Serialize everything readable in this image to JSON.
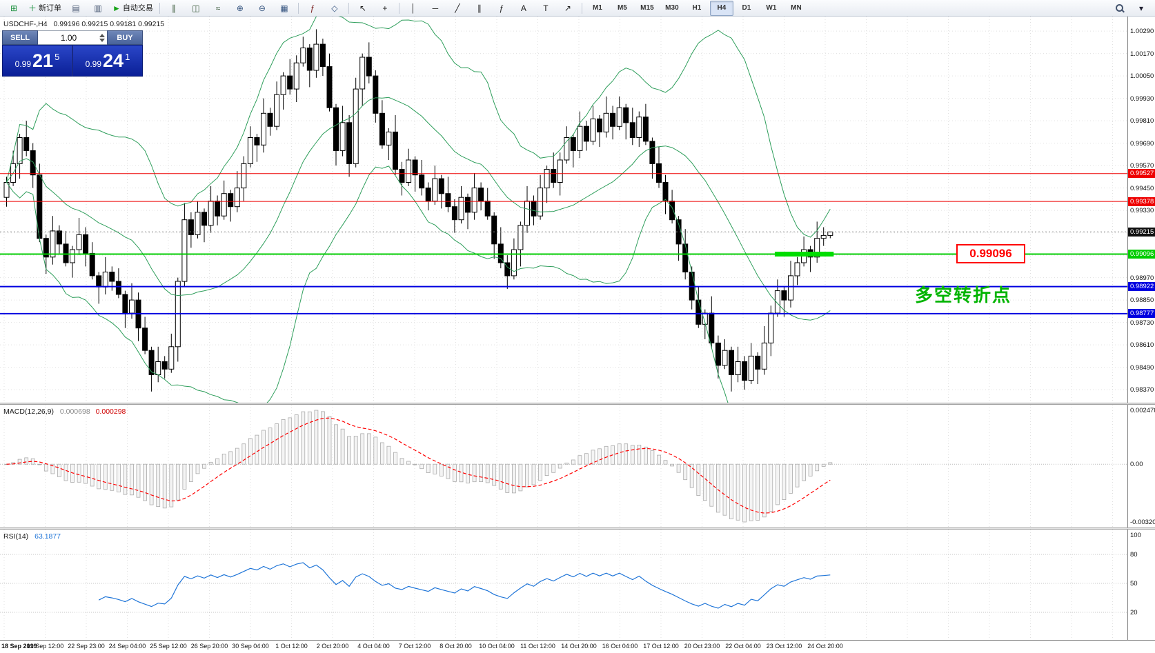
{
  "toolbar": {
    "buttons": [
      {
        "name": "app-icon",
        "glyph": "⊞",
        "color": "#1a8f3c"
      },
      {
        "name": "new-order-button",
        "glyph": "＋",
        "color": "#1a8f3c",
        "label": "新订单"
      },
      {
        "name": "charts-window-icon",
        "glyph": "▤",
        "color": "#44546f"
      },
      {
        "name": "market-watch-icon",
        "glyph": "▥",
        "color": "#44546f"
      },
      {
        "name": "autotrade-button",
        "glyph": "►",
        "color": "#15a315",
        "label": "自动交易"
      },
      {
        "type": "sep"
      },
      {
        "name": "bar-chart-icon",
        "glyph": "∥",
        "color": "#3a5a3a"
      },
      {
        "name": "candle-chart-icon",
        "glyph": "◫",
        "color": "#3a5a3a"
      },
      {
        "name": "line-chart-icon",
        "glyph": "≈",
        "color": "#3a5a3a"
      },
      {
        "name": "zoom-in-icon",
        "glyph": "⊕",
        "color": "#33527e"
      },
      {
        "name": "zoom-out-icon",
        "glyph": "⊖",
        "color": "#33527e"
      },
      {
        "name": "tile-windows-icon",
        "glyph": "▦",
        "color": "#33527e"
      },
      {
        "type": "sep"
      },
      {
        "name": "indicators-icon",
        "glyph": "ƒ",
        "color": "#7a2020"
      },
      {
        "name": "templates-icon",
        "glyph": "◇",
        "color": "#33527e"
      },
      {
        "type": "sep"
      },
      {
        "name": "cursor-icon",
        "glyph": "↖",
        "color": "#222222"
      },
      {
        "name": "crosshair-icon",
        "glyph": "+",
        "color": "#222222"
      },
      {
        "type": "sep"
      },
      {
        "name": "vertical-line-icon",
        "glyph": "│",
        "color": "#222222"
      },
      {
        "name": "horizontal-line-icon",
        "glyph": "─",
        "color": "#222222"
      },
      {
        "name": "trendline-icon",
        "glyph": "╱",
        "color": "#222222"
      },
      {
        "name": "channel-icon",
        "glyph": "∥",
        "color": "#222222"
      },
      {
        "name": "fibonacci-icon",
        "glyph": "ƒ",
        "color": "#222222"
      },
      {
        "name": "text-label-icon",
        "glyph": "A",
        "color": "#222222"
      },
      {
        "name": "arrows-tool-icon",
        "glyph": "T",
        "color": "#222222"
      },
      {
        "name": "shapes-icon",
        "glyph": "↗",
        "color": "#222222"
      },
      {
        "type": "sep"
      }
    ],
    "timeframes": [
      "M1",
      "M5",
      "M15",
      "M30",
      "H1",
      "H4",
      "D1",
      "W1",
      "MN"
    ],
    "active_timeframe": "H4"
  },
  "chart": {
    "symbol_tf": "USDCHF-,H4",
    "ohlc_text": "0.99196 0.99215 0.99181 0.99215",
    "level_box_text": "0.99096",
    "annotation_text": "多空转折点"
  },
  "trade_panel": {
    "sell_label": "SELL",
    "buy_label": "BUY",
    "volume": "1.00",
    "bid_prefix": "0.99",
    "bid_big": "21",
    "bid_sup": "5",
    "ask_prefix": "0.99",
    "ask_big": "24",
    "ask_sup": "1"
  },
  "macd_panel": {
    "name": "MACD(12,26,9)",
    "main_value": "0.000698",
    "signal_value": "0.000298"
  },
  "rsi_panel": {
    "name": "RSI(14)",
    "value": "63.1877"
  },
  "chart_data": {
    "type": "candlestick",
    "symbol": "USDCHF-",
    "timeframe": "H4",
    "price_axis_labels": [
      "1.00290",
      "1.00170",
      "1.00050",
      "0.99930",
      "0.99810",
      "0.99690",
      "0.99570",
      "0.99450",
      "0.99330",
      "0.98970",
      "0.98850",
      "0.98730",
      "0.98610",
      "0.98490",
      "0.98370"
    ],
    "time_labels": [
      "18 Sep 2019",
      "19 Sep 12:00",
      "22 Sep 23:00",
      "24 Sep 04:00",
      "25 Sep 12:00",
      "26 Sep 20:00",
      "30 Sep 04:00",
      "1 Oct 12:00",
      "2 Oct 20:00",
      "4 Oct 04:00",
      "7 Oct 12:00",
      "8 Oct 20:00",
      "10 Oct 04:00",
      "11 Oct 12:00",
      "14 Oct 20:00",
      "16 Oct 04:00",
      "17 Oct 12:00",
      "20 Oct 23:00",
      "22 Oct 04:00",
      "23 Oct 12:00",
      "24 Oct 20:00"
    ],
    "candles": [
      [
        0.994,
        0.9951,
        0.9935,
        0.9948
      ],
      [
        0.9948,
        0.9965,
        0.9946,
        0.9958
      ],
      [
        0.9958,
        0.9974,
        0.995,
        0.9972
      ],
      [
        0.9972,
        0.9981,
        0.9962,
        0.9965
      ],
      [
        0.9965,
        0.9969,
        0.9945,
        0.9952
      ],
      [
        0.9952,
        0.9958,
        0.9916,
        0.9918
      ],
      [
        0.9918,
        0.992,
        0.9899,
        0.9908
      ],
      [
        0.9908,
        0.993,
        0.9904,
        0.9922
      ],
      [
        0.9922,
        0.9925,
        0.991,
        0.9915
      ],
      [
        0.9915,
        0.9922,
        0.9903,
        0.9905
      ],
      [
        0.9905,
        0.9914,
        0.9897,
        0.9912
      ],
      [
        0.9912,
        0.9929,
        0.9909,
        0.992
      ],
      [
        0.992,
        0.9924,
        0.9903,
        0.991
      ],
      [
        0.991,
        0.9916,
        0.9896,
        0.9898
      ],
      [
        0.9898,
        0.99,
        0.9883,
        0.9892
      ],
      [
        0.9892,
        0.9908,
        0.9888,
        0.99
      ],
      [
        0.99,
        0.9903,
        0.989,
        0.9895
      ],
      [
        0.9895,
        0.9902,
        0.9886,
        0.9888
      ],
      [
        0.9888,
        0.989,
        0.987,
        0.9878
      ],
      [
        0.9878,
        0.9894,
        0.9875,
        0.9885
      ],
      [
        0.9885,
        0.9889,
        0.9863,
        0.987
      ],
      [
        0.987,
        0.9876,
        0.9856,
        0.9858
      ],
      [
        0.9858,
        0.986,
        0.9836,
        0.9845
      ],
      [
        0.9845,
        0.986,
        0.9841,
        0.9852
      ],
      [
        0.9852,
        0.9855,
        0.9843,
        0.9848
      ],
      [
        0.9848,
        0.9867,
        0.9846,
        0.986
      ],
      [
        0.986,
        0.9897,
        0.9852,
        0.9895
      ],
      [
        0.9895,
        0.9937,
        0.9892,
        0.9928
      ],
      [
        0.9928,
        0.9932,
        0.9913,
        0.992
      ],
      [
        0.992,
        0.9938,
        0.9918,
        0.9932
      ],
      [
        0.9932,
        0.9934,
        0.9916,
        0.9925
      ],
      [
        0.9925,
        0.9946,
        0.9921,
        0.9938
      ],
      [
        0.9938,
        0.9941,
        0.9925,
        0.993
      ],
      [
        0.993,
        0.9949,
        0.9928,
        0.9942
      ],
      [
        0.9942,
        0.9944,
        0.9927,
        0.9935
      ],
      [
        0.9935,
        0.9954,
        0.9932,
        0.9945
      ],
      [
        0.9945,
        0.9962,
        0.9938,
        0.9958
      ],
      [
        0.9958,
        0.9978,
        0.9956,
        0.9972
      ],
      [
        0.9972,
        0.9974,
        0.9959,
        0.9968
      ],
      [
        0.9968,
        0.9993,
        0.9964,
        0.9985
      ],
      [
        0.9985,
        0.9988,
        0.9973,
        0.9978
      ],
      [
        0.9978,
        1.0002,
        0.9976,
        0.9995
      ],
      [
        0.9995,
        1.0007,
        0.9987,
        1.0005
      ],
      [
        1.0005,
        1.0014,
        0.9995,
        0.9998
      ],
      [
        0.9998,
        1.0016,
        0.9991,
        1.0012
      ],
      [
        1.0012,
        1.0026,
        1.001,
        1.002
      ],
      [
        1.002,
        1.0022,
        0.9999,
        1.0008
      ],
      [
        1.0008,
        1.003,
        1.0004,
        1.0022
      ],
      [
        1.0022,
        1.0025,
        1.0005,
        1.001
      ],
      [
        1.001,
        1.0017,
        0.9986,
        0.9988
      ],
      [
        0.9988,
        0.999,
        0.9957,
        0.9965
      ],
      [
        0.9965,
        0.9989,
        0.9962,
        0.998
      ],
      [
        0.998,
        0.9984,
        0.9951,
        0.9958
      ],
      [
        0.9958,
        1.0004,
        0.9956,
        0.9998
      ],
      [
        0.9998,
        1.0017,
        0.9989,
        1.0015
      ],
      [
        1.0015,
        1.0023,
        1.0001,
        1.0005
      ],
      [
        1.0005,
        1.0008,
        0.998,
        0.9985
      ],
      [
        0.9985,
        0.9992,
        0.9966,
        0.9968
      ],
      [
        0.9968,
        0.9977,
        0.996,
        0.9975
      ],
      [
        0.9975,
        0.9984,
        0.9952,
        0.9955
      ],
      [
        0.9955,
        0.9959,
        0.9941,
        0.9948
      ],
      [
        0.9948,
        0.9966,
        0.9946,
        0.996
      ],
      [
        0.996,
        0.9962,
        0.9943,
        0.9952
      ],
      [
        0.9952,
        0.996,
        0.9941,
        0.9945
      ],
      [
        0.9945,
        0.9948,
        0.9933,
        0.9938
      ],
      [
        0.9938,
        0.9957,
        0.9936,
        0.995
      ],
      [
        0.995,
        0.9952,
        0.9934,
        0.9942
      ],
      [
        0.9942,
        0.9951,
        0.9932,
        0.9935
      ],
      [
        0.9935,
        0.9939,
        0.9921,
        0.9928
      ],
      [
        0.9928,
        0.9946,
        0.9926,
        0.994
      ],
      [
        0.994,
        0.9942,
        0.9923,
        0.9932
      ],
      [
        0.9932,
        0.9953,
        0.9928,
        0.9945
      ],
      [
        0.9945,
        0.9948,
        0.9933,
        0.9938
      ],
      [
        0.9938,
        0.9945,
        0.9928,
        0.993
      ],
      [
        0.993,
        0.9932,
        0.9907,
        0.9915
      ],
      [
        0.9915,
        0.9924,
        0.9902,
        0.9905
      ],
      [
        0.9905,
        0.9909,
        0.9891,
        0.9898
      ],
      [
        0.9898,
        0.9918,
        0.9896,
        0.9912
      ],
      [
        0.9912,
        0.9927,
        0.9903,
        0.9925
      ],
      [
        0.9925,
        0.9946,
        0.9921,
        0.9938
      ],
      [
        0.9938,
        0.9941,
        0.9925,
        0.993
      ],
      [
        0.993,
        0.9952,
        0.9928,
        0.9945
      ],
      [
        0.9945,
        0.9957,
        0.9937,
        0.9955
      ],
      [
        0.9955,
        0.9964,
        0.9945,
        0.9948
      ],
      [
        0.9948,
        0.9964,
        0.9941,
        0.996
      ],
      [
        0.996,
        0.9978,
        0.9958,
        0.9972
      ],
      [
        0.9972,
        0.9974,
        0.9956,
        0.9965
      ],
      [
        0.9965,
        0.9986,
        0.9961,
        0.9978
      ],
      [
        0.9978,
        0.9981,
        0.9965,
        0.997
      ],
      [
        0.997,
        0.9989,
        0.9968,
        0.9982
      ],
      [
        0.9982,
        0.9984,
        0.9967,
        0.9975
      ],
      [
        0.9975,
        0.9994,
        0.9972,
        0.9985
      ],
      [
        0.9985,
        0.9989,
        0.9971,
        0.9978
      ],
      [
        0.9978,
        0.9994,
        0.9976,
        0.9988
      ],
      [
        0.9988,
        0.999,
        0.9971,
        0.998
      ],
      [
        0.998,
        0.9988,
        0.9968,
        0.9972
      ],
      [
        0.9972,
        0.9986,
        0.9967,
        0.9983
      ],
      [
        0.9983,
        0.999,
        0.9968,
        0.997
      ],
      [
        0.997,
        0.9972,
        0.995,
        0.9958
      ],
      [
        0.9958,
        0.9967,
        0.9945,
        0.9948
      ],
      [
        0.9948,
        0.9952,
        0.9931,
        0.9938
      ],
      [
        0.9938,
        0.9944,
        0.9926,
        0.9928
      ],
      [
        0.9928,
        0.993,
        0.9906,
        0.9915
      ],
      [
        0.9915,
        0.9923,
        0.9896,
        0.99
      ],
      [
        0.99,
        0.9903,
        0.988,
        0.9885
      ],
      [
        0.9885,
        0.9892,
        0.987,
        0.9872
      ],
      [
        0.9872,
        0.988,
        0.9864,
        0.9878
      ],
      [
        0.9878,
        0.9887,
        0.9859,
        0.9862
      ],
      [
        0.9862,
        0.9866,
        0.9843,
        0.985
      ],
      [
        0.985,
        0.9864,
        0.9848,
        0.9858
      ],
      [
        0.9858,
        0.986,
        0.9836,
        0.9845
      ],
      [
        0.9845,
        0.986,
        0.9841,
        0.9852
      ],
      [
        0.9852,
        0.9855,
        0.9837,
        0.9842
      ],
      [
        0.9842,
        0.9862,
        0.984,
        0.9855
      ],
      [
        0.9855,
        0.9857,
        0.984,
        0.9848
      ],
      [
        0.9848,
        0.9871,
        0.9845,
        0.9862
      ],
      [
        0.9862,
        0.9882,
        0.9855,
        0.9878
      ],
      [
        0.9878,
        0.9896,
        0.9876,
        0.989
      ],
      [
        0.989,
        0.9892,
        0.9876,
        0.9885
      ],
      [
        0.9885,
        0.9906,
        0.9881,
        0.9898
      ],
      [
        0.9898,
        0.9908,
        0.9893,
        0.9905
      ],
      [
        0.9905,
        0.9919,
        0.9903,
        0.9912
      ],
      [
        0.9912,
        0.9914,
        0.99,
        0.9908
      ],
      [
        0.9908,
        0.9927,
        0.9905,
        0.9918
      ],
      [
        0.9918,
        0.9924,
        0.9914,
        0.99196
      ],
      [
        0.99196,
        0.99215,
        0.99181,
        0.99215
      ]
    ],
    "hlines": [
      {
        "price": 0.99527,
        "color": "#ee0000",
        "width": 1
      },
      {
        "price": 0.99378,
        "color": "#ee0000",
        "width": 1
      },
      {
        "price": 0.99096,
        "color": "#00cc00",
        "width": 2
      },
      {
        "price": 0.98922,
        "color": "#0000e0",
        "width": 2
      },
      {
        "price": 0.98777,
        "color": "#0000e0",
        "width": 2
      }
    ],
    "current_price": {
      "value": 0.99215,
      "badge_color": "#101010"
    },
    "green_segment": {
      "price": 0.99096,
      "from_bar": 117,
      "to_bar": 126,
      "color": "#00dd00"
    },
    "bollinger": {
      "period": 20,
      "deviation": 2,
      "color": "#2e9e5b"
    },
    "macd": {
      "fast": 12,
      "slow": 26,
      "signal": 9,
      "axis_labels": [
        "0.002478",
        "0.00",
        "-0.003208"
      ],
      "hist_color": "#aaaaaa",
      "signal_color": "#ff0000"
    },
    "rsi": {
      "period": 14,
      "levels": [
        80,
        50,
        20
      ],
      "axis_labels": [
        "100",
        "80",
        "50",
        "20"
      ],
      "color": "#1f75d8"
    }
  }
}
